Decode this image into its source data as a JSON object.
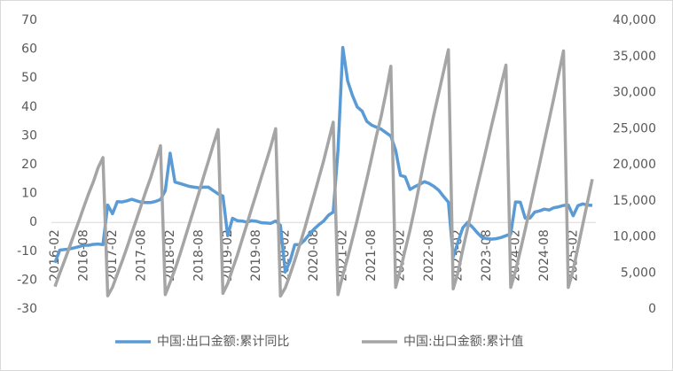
{
  "chart_data": {
    "type": "line",
    "categories": [
      "2016-02",
      null,
      null,
      null,
      null,
      null,
      "2016-08",
      null,
      null,
      null,
      null,
      null,
      "2017-02",
      null,
      null,
      null,
      null,
      null,
      "2017-08",
      null,
      null,
      null,
      null,
      null,
      "2018-02",
      null,
      null,
      null,
      null,
      null,
      "2018-08",
      null,
      null,
      null,
      null,
      null,
      "2019-02",
      null,
      null,
      null,
      null,
      null,
      "2019-08",
      null,
      null,
      null,
      null,
      null,
      "2020-02",
      null,
      null,
      null,
      null,
      null,
      "2020-08",
      null,
      null,
      null,
      null,
      null,
      "2021-02",
      null,
      null,
      null,
      null,
      null,
      "2021-08",
      null,
      null,
      null,
      null,
      null,
      "2022-02",
      null,
      null,
      null,
      null,
      null,
      "2022-08",
      null,
      null,
      null,
      null,
      null,
      "2023-02",
      null,
      null,
      null,
      null,
      null,
      "2023-08",
      null,
      null,
      null,
      null,
      null,
      "2024-02",
      null,
      null,
      null,
      null,
      null,
      "2024-08",
      null,
      null,
      null,
      null,
      null,
      "2025-02",
      null,
      null,
      null,
      null
    ],
    "series": [
      {
        "name": "中国:出口金额:累计同比",
        "color": "#5b9bd5",
        "axis": "y",
        "values": [
          -14,
          -9.6,
          -9.4,
          -9.2,
          -8.8,
          -8.4,
          -7.9,
          -7.9,
          -7.6,
          -7.5,
          -7.7,
          6.0,
          3.0,
          7.2,
          7.1,
          7.5,
          8.0,
          7.5,
          7.0,
          6.9,
          6.9,
          7.3,
          7.9,
          11,
          24,
          14,
          13.5,
          13,
          12.5,
          12.2,
          12,
          12.2,
          12.2,
          11,
          9.9,
          9.1,
          -4.6,
          1.4,
          0.6,
          0.5,
          0.1,
          0.6,
          0.4,
          -0.1,
          -0.2,
          -0.3,
          0.5,
          -1,
          -17.2,
          -13.4,
          -7.7,
          -7.7,
          -6.2,
          -4.1,
          -2.3,
          -0.8,
          0.5,
          2.5,
          3.6,
          25,
          60.6,
          49,
          44,
          40,
          38.6,
          35,
          33.7,
          33,
          32.3,
          31.1,
          29.9,
          25,
          16.3,
          15.8,
          11.4,
          12.4,
          13.2,
          14.1,
          13.5,
          12.5,
          11.1,
          9.0,
          7.0,
          -12,
          -6.8,
          -1.9,
          0,
          -1.6,
          -3.5,
          -5.2,
          -5.6,
          -5.8,
          -5.6,
          -5.2,
          -4.6,
          -4,
          7.1,
          7,
          1.5,
          1.5,
          3.6,
          4,
          4.6,
          4.3,
          5.1,
          5.4,
          5.9,
          6,
          2.3,
          5.8,
          6.4,
          6,
          5.9
        ]
      },
      {
        "name": "中国:出口金额:累计值",
        "color": "#a5a5a5",
        "axis": "y2",
        "values": [
          3100,
          4970,
          6700,
          8520,
          10380,
          12230,
          14140,
          15970,
          17630,
          19610,
          20980,
          1827,
          3028,
          4832,
          6636,
          8546,
          10510,
          12450,
          14440,
          16430,
          18300,
          20470,
          22635,
          2002,
          3722,
          5485,
          7490,
          9620,
          11780,
          13930,
          16110,
          18380,
          20510,
          22780,
          24874,
          2176,
          3528,
          5517,
          7450,
          9590,
          11720,
          13930,
          16070,
          18250,
          20380,
          22560,
          24990,
          1800,
          2924,
          4776,
          6779,
          8844,
          11056,
          13422,
          15770,
          18163,
          20536,
          23220,
          25906,
          2000,
          4689,
          7101,
          9736,
          12367,
          15181,
          17999,
          20943,
          23993,
          26713,
          29965,
          33640,
          3000,
          5451,
          8211,
          10946,
          14024,
          17335,
          20655,
          23802,
          26995,
          29983,
          32945,
          35936,
          2800,
          5063,
          8218,
          11172,
          14005,
          16858,
          19669,
          22514,
          25431,
          28168,
          31082,
          33800,
          3000,
          5280,
          8075,
          11001,
          14026,
          17104,
          20109,
          23189,
          26227,
          29319,
          32556,
          35771,
          3000,
          5396,
          8530,
          11683,
          14848,
          18000
        ]
      }
    ],
    "ylim": [
      -30,
      70
    ],
    "yticks": [
      -30,
      -20,
      -10,
      0,
      10,
      20,
      30,
      40,
      50,
      60,
      70
    ],
    "y2lim": [
      0,
      40000
    ],
    "y2ticks": [
      0,
      {
        "value": 5000,
        "label": "5,000"
      },
      {
        "value": 10000,
        "label": "10,000"
      },
      {
        "value": 15000,
        "label": "15,000"
      },
      {
        "value": 20000,
        "label": "20,000"
      },
      {
        "value": 25000,
        "label": "25,000"
      },
      {
        "value": 30000,
        "label": "30,000"
      },
      {
        "value": 35000,
        "label": "35,000"
      },
      {
        "value": 40000,
        "label": "40,000"
      }
    ],
    "legend": "bottom"
  }
}
